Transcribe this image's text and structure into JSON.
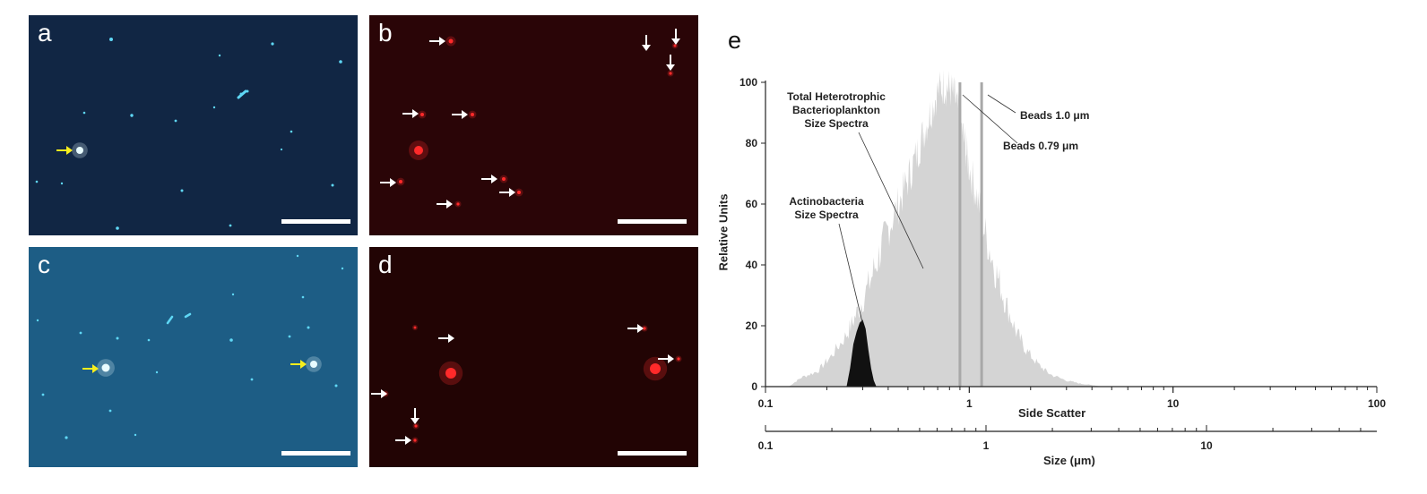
{
  "panels": {
    "a": {
      "label": "a"
    },
    "b": {
      "label": "b"
    },
    "c": {
      "label": "c"
    },
    "d": {
      "label": "d"
    },
    "e": {
      "label": "e"
    }
  },
  "colors": {
    "panel_a_bg": "#112644",
    "panel_c_bg": "#1d5d85",
    "red_panel_bg": "#2a0507",
    "cell_blue": "#5fd7f5",
    "cell_red": "#ff2a2a",
    "arrow_white": "#ffffff",
    "arrow_yellow": "#f7ee1d",
    "spectrum_gray": "#d4d4d4",
    "spectrum_black": "#111111",
    "bead_line": "#a8a8a8"
  },
  "chart_data": {
    "type": "area",
    "title": "",
    "xlabel": "Side Scatter",
    "secondary_xlabel": "Size (μm)",
    "ylabel": "Relative Units",
    "x_scale": "log",
    "xlim": [
      0.1,
      100
    ],
    "ylim": [
      0,
      100
    ],
    "x_ticks": [
      "0.1",
      "1",
      "10",
      "100"
    ],
    "secondary_x_ticks": [
      "0.1",
      "1",
      "10"
    ],
    "y_ticks": [
      "0",
      "20",
      "40",
      "60",
      "80",
      "100"
    ],
    "series": [
      {
        "name": "Total Heterotrophic Bacterioplankton Size Spectra",
        "color": "#d4d4d4",
        "x": [
          0.13,
          0.15,
          0.18,
          0.21,
          0.25,
          0.28,
          0.32,
          0.36,
          0.4,
          0.45,
          0.5,
          0.55,
          0.6,
          0.65,
          0.7,
          0.75,
          0.8,
          0.85,
          0.9,
          0.95,
          1.0,
          1.1,
          1.2,
          1.35,
          1.5,
          1.7,
          1.9,
          2.2,
          2.5,
          3.0,
          3.5,
          4.0,
          4.6
        ],
        "values": [
          0,
          3,
          5,
          10,
          17,
          24,
          33,
          43,
          52,
          60,
          68,
          76,
          84,
          91,
          97,
          99,
          98,
          95,
          88,
          80,
          72,
          62,
          50,
          38,
          28,
          18,
          12,
          7,
          4,
          2,
          1,
          0.5,
          0
        ]
      },
      {
        "name": "Actinobacteria Size Spectra",
        "color": "#111111",
        "x": [
          0.25,
          0.26,
          0.27,
          0.28,
          0.29,
          0.3,
          0.31,
          0.32,
          0.33,
          0.34,
          0.35
        ],
        "values": [
          0,
          6,
          14,
          18,
          21,
          22,
          19,
          12,
          6,
          2,
          0
        ]
      }
    ],
    "annotations": [
      {
        "text": "Total Heterotrophic Bacterioplankton Size Spectra",
        "x": 0.55,
        "y": 40
      },
      {
        "text": "Actinobacteria Size Spectra",
        "x": 0.29,
        "y": 20
      },
      {
        "text": "Beads 1.0 μm",
        "x": 1.15,
        "y": 100
      },
      {
        "text": "Beads 0.79 μm",
        "x": 0.9,
        "y": 95
      }
    ],
    "bead_lines_x": [
      0.9,
      1.15
    ]
  },
  "annotations_text": {
    "total_line1": "Total Heterotrophic",
    "total_line2": "Bacterioplankton",
    "total_line3": "Size Spectra",
    "actino_line1": "Actinobacteria",
    "actino_line2": "Size Spectra",
    "beads_1": "Beads 1.0 μm",
    "beads_079": "Beads 0.79 μm"
  }
}
